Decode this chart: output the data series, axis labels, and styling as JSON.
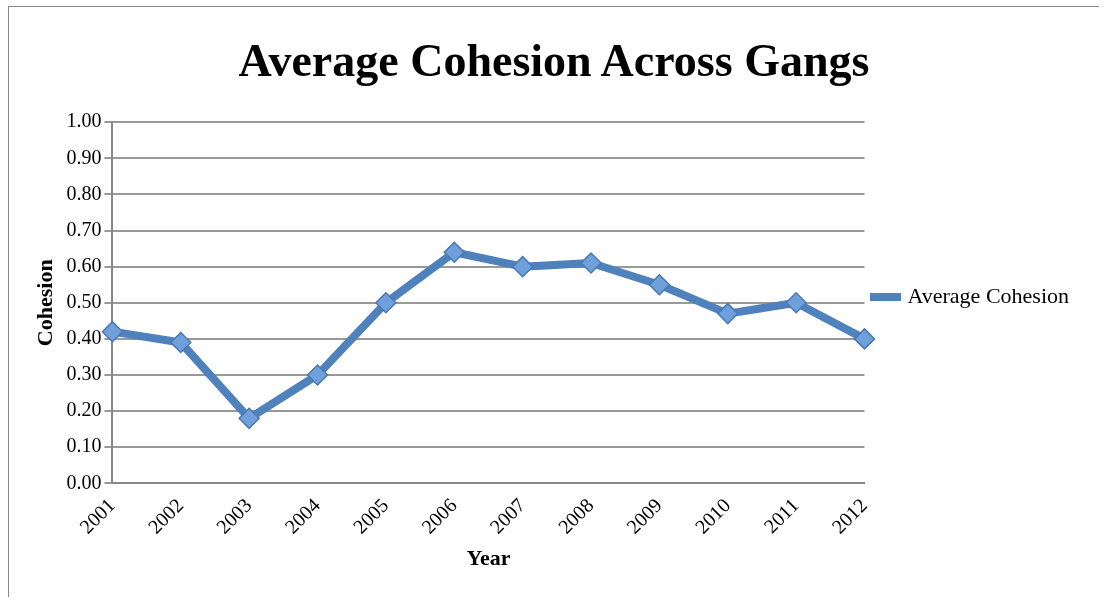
{
  "chart_data": {
    "type": "line",
    "title": "Average Cohesion Across Gangs",
    "xlabel": "Year",
    "ylabel": "Cohesion",
    "categories": [
      "2001",
      "2002",
      "2003",
      "2004",
      "2005",
      "2006",
      "2007",
      "2008",
      "2009",
      "2010",
      "2011",
      "2012"
    ],
    "series": [
      {
        "name": "Average Cohesion",
        "color": "#4f81bd",
        "values": [
          0.42,
          0.39,
          0.18,
          0.3,
          0.5,
          0.64,
          0.6,
          0.61,
          0.55,
          0.47,
          0.5,
          0.4
        ]
      }
    ],
    "ylim": [
      0,
      1
    ],
    "yticks": [
      {
        "value": 0,
        "label": "0.00"
      },
      {
        "value": 0.1,
        "label": "0.10"
      },
      {
        "value": 0.2,
        "label": "0.20"
      },
      {
        "value": 0.3,
        "label": "0.30"
      },
      {
        "value": 0.4,
        "label": "0.40"
      },
      {
        "value": 0.5,
        "label": "0.50"
      },
      {
        "value": 0.6,
        "label": "0.60"
      },
      {
        "value": 0.7,
        "label": "0.70"
      },
      {
        "value": 0.8,
        "label": "0.80"
      },
      {
        "value": 0.9,
        "label": "0.90"
      },
      {
        "value": 1,
        "label": "1.00"
      }
    ],
    "grid": "y",
    "legend": "right",
    "marker": "diamond",
    "line_style": "solid"
  }
}
